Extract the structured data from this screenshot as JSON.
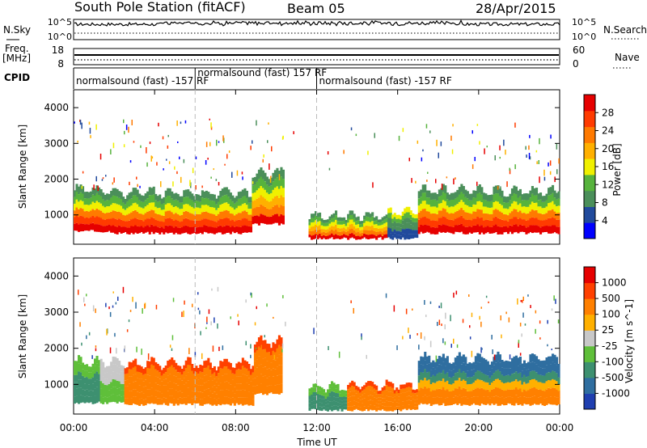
{
  "header": {
    "station": "South Pole Station (fitACF)",
    "beam": "Beam 05",
    "date": "28/Apr/2015"
  },
  "noise_panel": {
    "left_label": "N.Sky",
    "right_label": "N.Search",
    "left_ticks": [
      "10^5",
      "10^0"
    ],
    "right_ticks": [
      "10^5",
      "10^0"
    ]
  },
  "freq_panel": {
    "left_label_line1": "Freq.",
    "left_label_line2": "[MHz]",
    "right_label": "Nave",
    "left_ticks": [
      "18",
      "8"
    ],
    "right_ticks": [
      "60",
      "0"
    ]
  },
  "cpid": {
    "label": "CPID",
    "segments": [
      {
        "text": "normalsound (fast) -157 RF",
        "start_hour": 0.0,
        "end_hour": 6.0
      },
      {
        "text": "normalsound (fast) 157 RF",
        "start_hour": 6.0,
        "end_hour": 12.0
      },
      {
        "text": "normalsound (fast) -157 RF",
        "start_hour": 12.0,
        "end_hour": 24.0
      }
    ]
  },
  "chart_data": [
    {
      "type": "heatmap",
      "title": "",
      "xlabel": "",
      "ylabel": "Slant Range [km]",
      "xlim": [
        0,
        24
      ],
      "ylim": [
        180,
        4500
      ],
      "yticks": [
        1000,
        2000,
        3000,
        4000
      ],
      "colorbar": {
        "label": "Power [dB]",
        "ticks": [
          "28",
          "24",
          "20",
          "16",
          "12",
          "8",
          "4"
        ],
        "colors": [
          "#0000ff",
          "#214a9c",
          "#4b8f5a",
          "#57b33d",
          "#f0f000",
          "#ffb000",
          "#ff7a00",
          "#ff3b00",
          "#e60000"
        ]
      },
      "bands": [
        {
          "t0": 0.0,
          "t1": 2.0,
          "r_low": 500,
          "r_high": 1650,
          "level": "high"
        },
        {
          "t0": 2.0,
          "t1": 8.8,
          "r_low": 450,
          "r_high": 1550,
          "level": "high"
        },
        {
          "t0": 8.8,
          "t1": 10.4,
          "r_low": 700,
          "r_high": 2100,
          "level": "mid"
        },
        {
          "t0": 11.6,
          "t1": 15.5,
          "r_low": 300,
          "r_high": 900,
          "level": "mid"
        },
        {
          "t0": 15.5,
          "t1": 17.0,
          "r_low": 300,
          "r_high": 1000,
          "level": "low"
        },
        {
          "t0": 17.0,
          "t1": 24.0,
          "r_low": 450,
          "r_high": 1600,
          "level": "high"
        }
      ]
    },
    {
      "type": "heatmap",
      "title": "",
      "xlabel": "Time UT",
      "ylabel": "Slant Range [km]",
      "xlim": [
        0,
        24
      ],
      "ylim": [
        180,
        4500
      ],
      "yticks": [
        1000,
        2000,
        3000,
        4000
      ],
      "xticks": [
        "00:00",
        "04:00",
        "08:00",
        "12:00",
        "16:00",
        "20:00",
        "00:00"
      ],
      "colorbar": {
        "label": "Velocity [m s^-1]",
        "ticks": [
          "1000",
          "500",
          "100",
          "25",
          "-25",
          "-100",
          "-500",
          "-1000"
        ],
        "colors": [
          "#1f3fb0",
          "#2f6ea0",
          "#3d9070",
          "#5fbf3a",
          "#c8c8c8",
          "#ffb000",
          "#ff8000",
          "#ff4000",
          "#e60000"
        ]
      },
      "bands": [
        {
          "t0": 0.0,
          "t1": 1.3,
          "r_low": 450,
          "r_high": 1550,
          "level": "green"
        },
        {
          "t0": 1.3,
          "t1": 2.5,
          "r_low": 450,
          "r_high": 1550,
          "level": "lightgreen"
        },
        {
          "t0": 2.5,
          "t1": 8.9,
          "r_low": 400,
          "r_high": 1500,
          "level": "orange"
        },
        {
          "t0": 8.9,
          "t1": 10.3,
          "r_low": 700,
          "r_high": 2100,
          "level": "orange"
        },
        {
          "t0": 11.6,
          "t1": 13.5,
          "r_low": 250,
          "r_high": 850,
          "level": "green"
        },
        {
          "t0": 13.5,
          "t1": 17.0,
          "r_low": 250,
          "r_high": 900,
          "level": "orange"
        },
        {
          "t0": 17.0,
          "t1": 24.0,
          "r_low": 400,
          "r_high": 1650,
          "level": "mixed"
        }
      ]
    }
  ]
}
